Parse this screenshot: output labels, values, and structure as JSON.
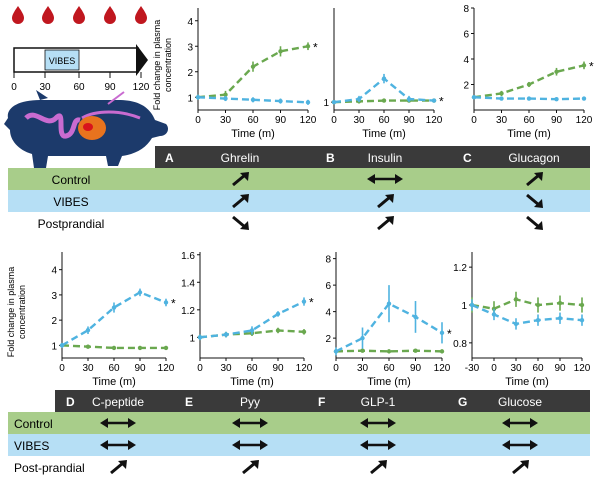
{
  "timeline": {
    "ticks": [
      "0",
      "30",
      "60",
      "90",
      "120"
    ],
    "box_label": "VIBES"
  },
  "panel_header": {
    "hormones_top": [
      {
        "letter": "A",
        "name": "Ghrelin"
      },
      {
        "letter": "B",
        "name": "Insulin"
      },
      {
        "letter": "C",
        "name": "Glucagon"
      }
    ],
    "hormones_bottom": [
      {
        "letter": "D",
        "name": "C-peptide"
      },
      {
        "letter": "E",
        "name": "Pyy"
      },
      {
        "letter": "F",
        "name": "GLP-1"
      },
      {
        "letter": "G",
        "name": "Glucose"
      }
    ]
  },
  "rows_top": [
    "Control",
    "VIBES",
    "Postprandial"
  ],
  "rows_bottom": [
    "Control",
    "VIBES",
    "Post-prandial"
  ],
  "arrows_top": [
    [
      "up-right",
      "bidirectional",
      "up-right"
    ],
    [
      "up-right",
      "up-right",
      "down-right"
    ],
    [
      "down-right",
      "up-right",
      "down-right"
    ]
  ],
  "arrows_bottom": [
    [
      "bidirectional",
      "bidirectional",
      "bidirectional",
      "bidirectional"
    ],
    [
      "bidirectional",
      "bidirectional",
      "bidirectional",
      "bidirectional"
    ],
    [
      "up-right",
      "up-right",
      "up-right",
      "up-right"
    ]
  ],
  "colors": {
    "control_green": "#6aa84f",
    "vibes_blue": "#4fb3e0",
    "row_green": "#a8cd8a",
    "row_blue": "#b6dff5",
    "header_dark": "#3a3a3a",
    "blood_red": "#c0171f"
  },
  "axis_text": {
    "xlabel": "Time (m)",
    "ylabel_line1": "Fold change in plasma",
    "ylabel_line2": "concentration",
    "significance": "*"
  },
  "chart_data": [
    {
      "id": "A",
      "type": "line",
      "title": "Ghrelin",
      "xlabel": "Time (m)",
      "ylabel": "Fold change in plasma concentration",
      "x": [
        0,
        30,
        60,
        90,
        120
      ],
      "xticks": [
        "0",
        "30",
        "60",
        "90",
        "120"
      ],
      "ylim": [
        0.5,
        4.5
      ],
      "yticks": [
        "1",
        "2",
        "3",
        "4"
      ],
      "series": [
        {
          "name": "Control",
          "values": [
            1,
            1.1,
            2.2,
            2.8,
            3.0
          ],
          "err": [
            0.1,
            0.15,
            0.2,
            0.2,
            0.15
          ]
        },
        {
          "name": "VIBES",
          "values": [
            1,
            0.95,
            0.9,
            0.85,
            0.8
          ],
          "err": [
            0.1,
            0.1,
            0.1,
            0.1,
            0.1
          ]
        }
      ],
      "significant_series": "Control"
    },
    {
      "id": "B",
      "type": "line",
      "title": "Insulin",
      "xlabel": "Time (m)",
      "ylabel": "",
      "x": [
        0,
        30,
        60,
        90,
        120
      ],
      "xticks": [
        "0",
        "30",
        "60",
        "90",
        "120"
      ],
      "ylim": [
        0.5,
        7
      ],
      "yticks": [
        "1"
      ],
      "series": [
        {
          "name": "Control",
          "values": [
            1,
            1.05,
            1.1,
            1.1,
            1.1
          ],
          "err": [
            0.1,
            0.1,
            0.1,
            0.1,
            0.1
          ]
        },
        {
          "name": "VIBES",
          "values": [
            1,
            1.2,
            2.5,
            1.2,
            1.1
          ],
          "err": [
            0.1,
            0.2,
            0.3,
            0.2,
            0.1
          ]
        }
      ],
      "significant_series": "VIBES"
    },
    {
      "id": "C",
      "type": "line",
      "title": "Glucagon",
      "xlabel": "Time (m)",
      "ylabel": "",
      "x": [
        0,
        30,
        60,
        90,
        120
      ],
      "xticks": [
        "0",
        "30",
        "60",
        "90",
        "120"
      ],
      "ylim": [
        0,
        8
      ],
      "yticks": [
        "2",
        "4",
        "6",
        "8"
      ],
      "series": [
        {
          "name": "Control",
          "values": [
            1,
            1.3,
            2.0,
            3.0,
            3.5
          ],
          "err": [
            0.1,
            0.2,
            0.2,
            0.3,
            0.3
          ]
        },
        {
          "name": "VIBES",
          "values": [
            1,
            0.9,
            0.9,
            0.85,
            0.9
          ],
          "err": [
            0.1,
            0.1,
            0.1,
            0.1,
            0.1
          ]
        }
      ],
      "significant_series": "Control"
    },
    {
      "id": "D",
      "type": "line",
      "title": "C-peptide",
      "xlabel": "Time (m)",
      "ylabel": "Fold change in plasma concentration",
      "x": [
        0,
        30,
        60,
        90,
        120
      ],
      "xticks": [
        "0",
        "30",
        "60",
        "90",
        "120"
      ],
      "ylim": [
        0.5,
        4.7
      ],
      "yticks": [
        "1",
        "2",
        "3",
        "4"
      ],
      "series": [
        {
          "name": "Control",
          "values": [
            1,
            0.95,
            0.9,
            0.9,
            0.9
          ],
          "err": [
            0.05,
            0.05,
            0.05,
            0.05,
            0.05
          ]
        },
        {
          "name": "VIBES",
          "values": [
            1,
            1.6,
            2.5,
            3.1,
            2.7
          ],
          "err": [
            0.1,
            0.15,
            0.2,
            0.15,
            0.15
          ]
        }
      ],
      "significant_series": "VIBES"
    },
    {
      "id": "E",
      "type": "line",
      "title": "Pyy",
      "xlabel": "Time (m)",
      "ylabel": "",
      "x": [
        0,
        30,
        60,
        90,
        120
      ],
      "xticks": [
        "0",
        "30",
        "60",
        "90",
        "120"
      ],
      "ylim": [
        0.85,
        1.62
      ],
      "yticks": [
        "1",
        "1.2",
        "1.4",
        "1.6"
      ],
      "series": [
        {
          "name": "Control",
          "values": [
            1,
            1.02,
            1.03,
            1.05,
            1.04
          ],
          "err": [
            0.02,
            0.02,
            0.02,
            0.02,
            0.02
          ]
        },
        {
          "name": "VIBES",
          "values": [
            1,
            1.02,
            1.05,
            1.17,
            1.26
          ],
          "err": [
            0.02,
            0.02,
            0.03,
            0.02,
            0.03
          ]
        }
      ],
      "significant_series": "VIBES"
    },
    {
      "id": "F",
      "type": "line",
      "title": "GLP-1",
      "xlabel": "Time (m)",
      "ylabel": "",
      "x": [
        0,
        30,
        60,
        90,
        120
      ],
      "xticks": [
        "0",
        "30",
        "60",
        "90",
        "120"
      ],
      "ylim": [
        0.5,
        8.5
      ],
      "yticks": [
        "2",
        "4",
        "6",
        "8"
      ],
      "series": [
        {
          "name": "Control",
          "values": [
            1,
            1.05,
            1,
            1.05,
            1
          ],
          "err": [
            0.1,
            0.1,
            0.1,
            0.1,
            0.1
          ]
        },
        {
          "name": "VIBES",
          "values": [
            1,
            2,
            4.6,
            3.6,
            2.4
          ],
          "err": [
            0.3,
            0.8,
            1.4,
            1.2,
            0.8
          ]
        }
      ],
      "significant_series": "VIBES"
    },
    {
      "id": "G",
      "type": "line",
      "title": "Glucose",
      "xlabel": "Time (m)",
      "ylabel": "",
      "x": [
        -30,
        0,
        30,
        60,
        90,
        120
      ],
      "xticks": [
        "-30",
        "0",
        "30",
        "60",
        "90",
        "120"
      ],
      "ylim": [
        0.72,
        1.28
      ],
      "yticks": [
        "0.8",
        "1",
        "1.2"
      ],
      "series": [
        {
          "name": "Control",
          "values": [
            1,
            0.98,
            1.03,
            1.0,
            1.01,
            1.0
          ],
          "err": [
            0.04,
            0.04,
            0.04,
            0.04,
            0.04,
            0.04
          ]
        },
        {
          "name": "VIBES",
          "values": [
            1,
            0.95,
            0.9,
            0.92,
            0.93,
            0.92
          ],
          "err": [
            0.03,
            0.03,
            0.03,
            0.03,
            0.03,
            0.03
          ]
        }
      ],
      "significant_series": ""
    }
  ]
}
